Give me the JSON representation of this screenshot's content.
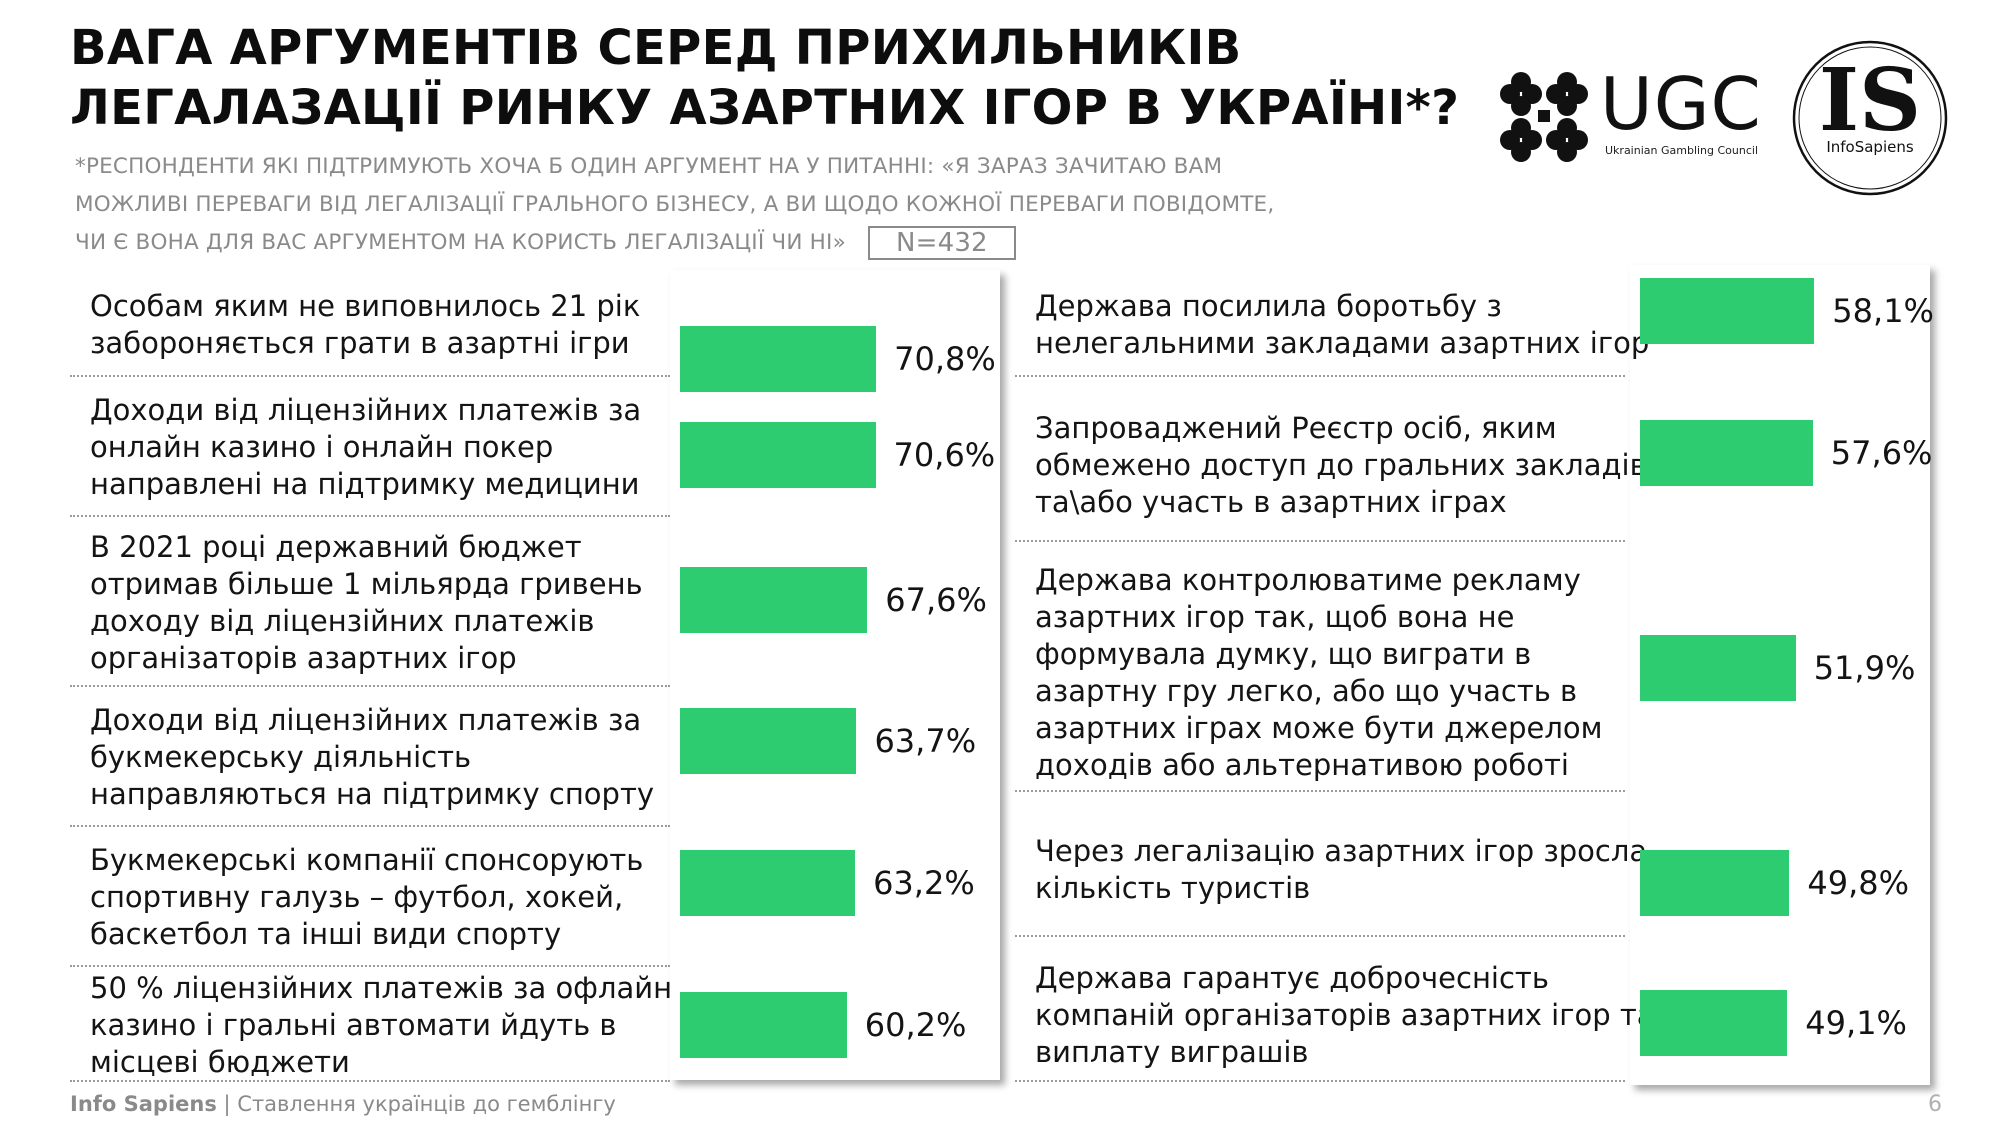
{
  "header": {
    "title_line1": "ВАГА АРГУМЕНТІВ СЕРЕД  ПРИХИЛЬНИКІВ",
    "title_line2": "ЛЕГАЛАЗАЦІЇ РИНКУ АЗАРТНИХ ІГОР В УКРАЇНІ*?",
    "subtitle_line1": "*РЕСПОНДЕНТИ ЯКІ ПІДТРИМУЮТЬ ХОЧА Б ОДИН АРГУМЕНТ НА У ПИТАННІ: «Я ЗАРАЗ ЗАЧИТАЮ ВАМ",
    "subtitle_line2": "МОЖЛИВІ ПЕРЕВАГИ ВІД ЛЕГАЛІЗАЦІЇ ГРАЛЬНОГО БІЗНЕСУ, А ВИ ЩОДО КОЖНОЇ ПЕРЕВАГИ ПОВІДОМТЕ,",
    "subtitle_line3": "ЧИ Є ВОНА ДЛЯ ВАС АРГУМЕНТОМ НА КОРИСТЬ ЛЕГАЛІЗАЦІЇ ЧИ НІ»",
    "sample": "N=432"
  },
  "logos": {
    "ugc_text": "UGC",
    "ugc_sub": "Ukrainian Gambling Council",
    "is_letters": "IS",
    "is_name": "InfoSapiens"
  },
  "colors": {
    "bar": "#2ecc71",
    "text": "#141414",
    "muted": "#8a8a8a"
  },
  "chart_data": {
    "type": "bar",
    "orientation": "horizontal",
    "panels": [
      {
        "items": [
          {
            "label_lines": [
              "Особам яким не виповнилось 21 рік",
              "забороняється грати в азартні ігри"
            ],
            "value": 70.8,
            "value_label": "70,8%"
          },
          {
            "label_lines": [
              "Доходи від ліцензійних платежів за",
              "онлайн казино і онлайн покер",
              "направлені на підтримку медицини"
            ],
            "value": 70.6,
            "value_label": "70,6%"
          },
          {
            "label_lines": [
              "В 2021 році державний бюджет",
              "отримав більше 1 мільярда гривень",
              "доходу від ліцензійних платежів",
              "організаторів азартних ігор"
            ],
            "value": 67.6,
            "value_label": "67,6%"
          },
          {
            "label_lines": [
              "Доходи від ліцензійних платежів за",
              "букмекерську діяльність",
              "направляються на підтримку спорту"
            ],
            "value": 63.7,
            "value_label": "63,7%"
          },
          {
            "label_lines": [
              "Букмекерські компанії спонсорують",
              "спортивну галузь – футбол, хокей,",
              "баскетбол та інші види спорту"
            ],
            "value": 63.2,
            "value_label": "63,2%"
          },
          {
            "label_lines": [
              "50 % ліцензійних платежів за офлайн",
              "казино і гральні автомати йдуть в",
              "місцеві бюджети"
            ],
            "value": 60.2,
            "value_label": "60,2%"
          }
        ]
      },
      {
        "items": [
          {
            "label_lines": [
              "Держава посилила боротьбу з",
              "нелегальними закладами азартних ігор"
            ],
            "value": 58.1,
            "value_label": "58,1%"
          },
          {
            "label_lines": [
              "Запроваджений Реєстр осіб, яким",
              "обмежено доступ до гральних закладів",
              "та\\або участь в азартних іграх"
            ],
            "value": 57.6,
            "value_label": "57,6%"
          },
          {
            "label_lines": [
              "Держава контролюватиме рекламу",
              "азартних ігор так, щоб вона не",
              "формувала думку, що виграти в",
              "азартну гру легко, або що участь в",
              "азартних іграх може бути джерелом",
              "доходів або альтернативою роботі"
            ],
            "value": 51.9,
            "value_label": "51,9%"
          },
          {
            "label_lines": [
              "Через легалізацію азартних ігор зросла",
              "кількість туристів"
            ],
            "value": 49.8,
            "value_label": "49,8%"
          },
          {
            "label_lines": [
              "Держава гарантує доброчесність",
              "компаній організаторів азартних ігор та",
              "виплату виграшів"
            ],
            "value": 49.1,
            "value_label": "49,1%"
          }
        ]
      }
    ]
  },
  "footer": {
    "brand": "Info Sapiens",
    "text": " | Ставлення українців до гемблінгу",
    "page": "6"
  }
}
